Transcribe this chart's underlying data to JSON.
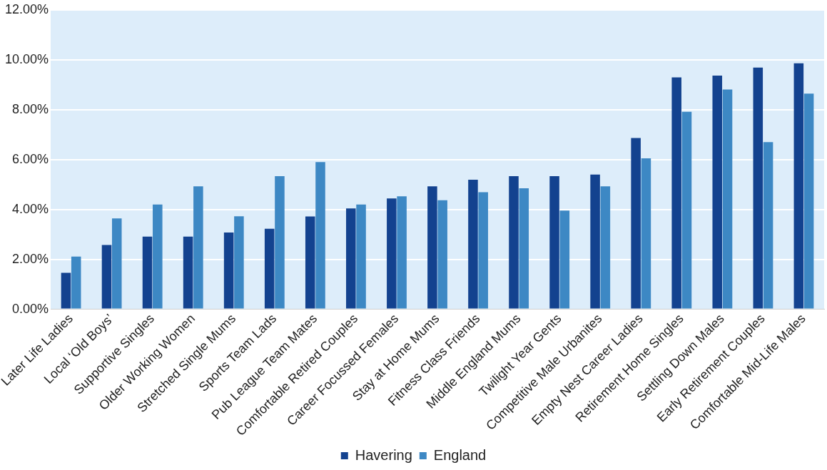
{
  "chart_data": {
    "type": "bar",
    "categories": [
      "Later Life Ladies",
      "Local ‘Old Boys’",
      "Supportive Singles",
      "Older Working Women",
      "Stretched Single Mums",
      "Sports Team Lads",
      "Pub League Team Mates",
      "Comfortable Retired Couples",
      "Career Focussed Females",
      "Stay at Home Mums",
      "Fitness Class Friends",
      "Middle England Mums",
      "Twilight Year Gents",
      "Competitive Male Urbanites",
      "Empty Nest Career Ladies",
      "Retirement Home Singles",
      "Settling Down Males",
      "Early Retirement Couples",
      "Comfortable Mid-Life Males"
    ],
    "series": [
      {
        "name": "Havering",
        "color": "#13428f",
        "values": [
          1.46,
          2.58,
          2.91,
          2.91,
          3.08,
          3.23,
          3.72,
          4.04,
          4.44,
          4.93,
          5.19,
          5.34,
          5.34,
          5.4,
          6.87,
          9.3,
          9.37,
          9.69,
          9.86
        ]
      },
      {
        "name": "England",
        "color": "#3d88c4",
        "values": [
          2.11,
          3.64,
          4.2,
          4.93,
          3.73,
          5.34,
          5.9,
          4.2,
          4.53,
          4.37,
          4.69,
          4.85,
          3.96,
          4.93,
          6.05,
          7.92,
          8.81,
          6.7,
          8.65
        ]
      }
    ],
    "ylim": [
      0,
      12
    ],
    "yticks": [
      {
        "value": 0,
        "label": "0.00%"
      },
      {
        "value": 2,
        "label": "2.00%"
      },
      {
        "value": 4,
        "label": "4.00%"
      },
      {
        "value": 6,
        "label": "6.00%"
      },
      {
        "value": 8,
        "label": "8.00%"
      },
      {
        "value": 10,
        "label": "10.00%"
      },
      {
        "value": 12,
        "label": "12.00%"
      }
    ],
    "grid": "y",
    "legend": "bottom"
  }
}
